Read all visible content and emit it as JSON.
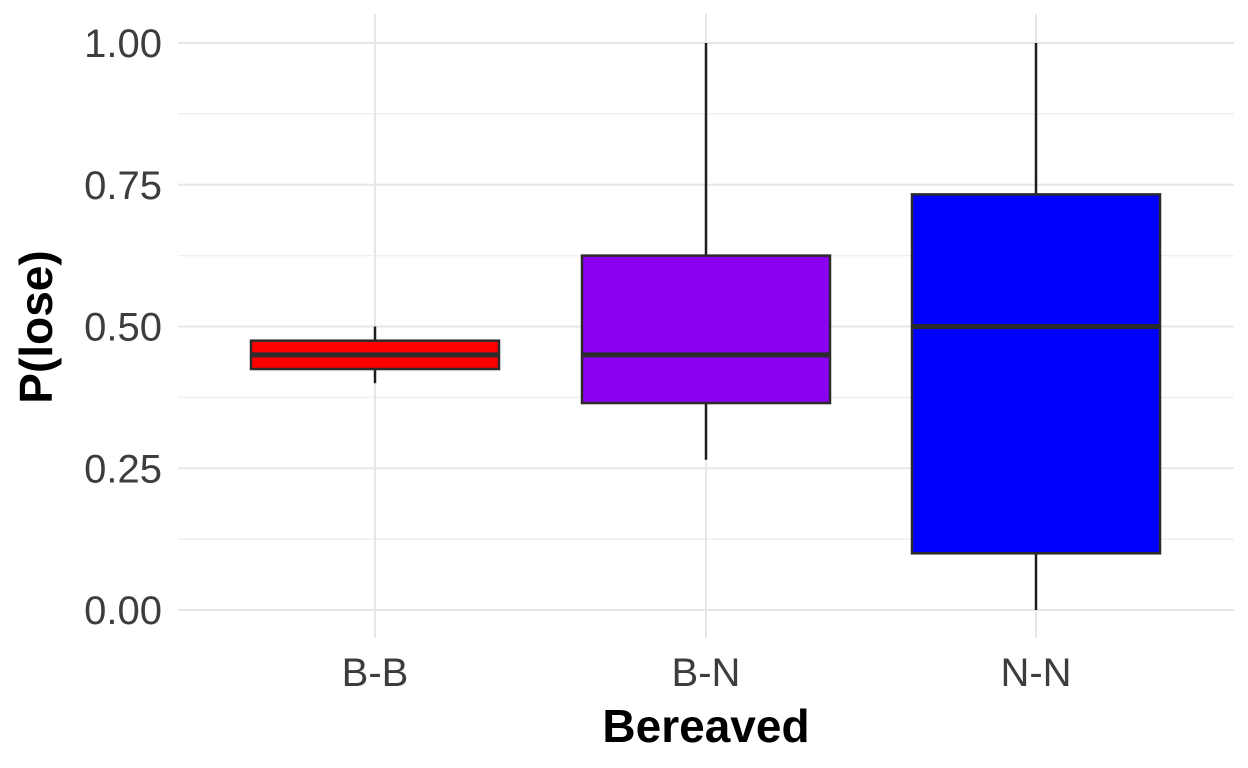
{
  "chart_data": {
    "type": "boxplot",
    "xlabel": "Bereaved",
    "ylabel": "P(lose)",
    "ylim": [
      0,
      1
    ],
    "yticks": [
      0,
      0.25,
      0.5,
      0.75,
      1
    ],
    "ytick_labels": [
      "0.00",
      "0.25",
      "0.50",
      "0.75",
      "1.00"
    ],
    "grid": true,
    "categories": [
      "B-B",
      "B-N",
      "N-N"
    ],
    "boxes": [
      {
        "category": "B-B",
        "min": 0.4,
        "q1": 0.425,
        "median": 0.45,
        "q3": 0.475,
        "max": 0.5,
        "color": "#ff0000"
      },
      {
        "category": "B-N",
        "min": 0.265,
        "q1": 0.365,
        "median": 0.45,
        "q3": 0.625,
        "max": 1.0,
        "color": "#8b00f0"
      },
      {
        "category": "N-N",
        "min": 0.0,
        "q1": 0.1,
        "median": 0.5,
        "q3": 0.733,
        "max": 1.0,
        "color": "#0000ff"
      }
    ]
  }
}
